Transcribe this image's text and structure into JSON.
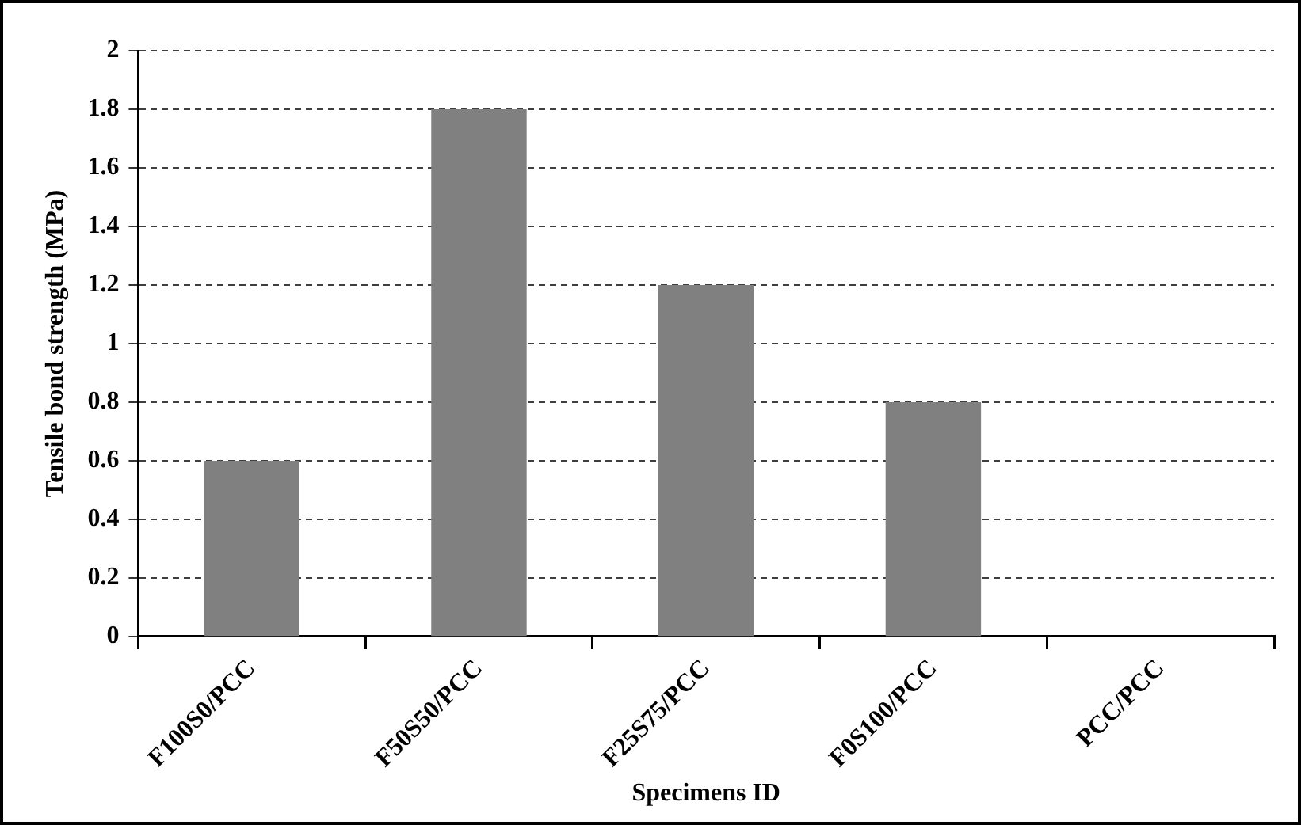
{
  "chart_data": {
    "type": "bar",
    "xlabel": "Specimens ID",
    "ylabel": "Tensile bond strength (MPa)",
    "categories": [
      "F100S0/PCC",
      "F50S50/PCC",
      "F25S75/PCC",
      "F0S100/PCC",
      "PCC/PCC"
    ],
    "values": [
      0.6,
      1.8,
      1.2,
      0.8,
      0
    ],
    "color": "#808080",
    "ylim": [
      0,
      2
    ],
    "yticks": [
      0,
      0.2,
      0.4,
      0.6,
      0.8,
      1,
      1.2,
      1.4,
      1.6,
      1.8,
      2
    ],
    "grid": "y",
    "legend": false
  }
}
